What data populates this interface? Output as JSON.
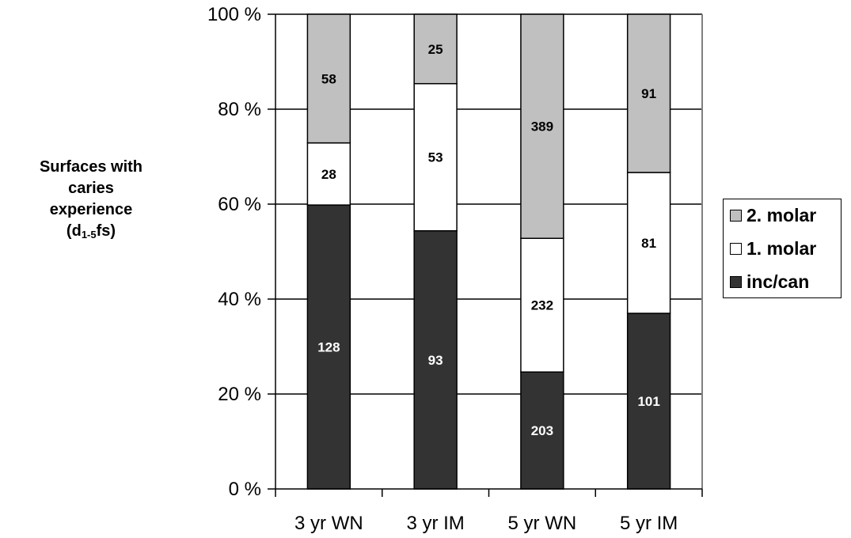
{
  "chart_data": {
    "type": "bar",
    "stacked": "percent",
    "ylabel_lines": [
      "Surfaces with",
      "caries",
      "experience"
    ],
    "ylabel_formula": {
      "base": "(d",
      "sub": "1-5",
      "suffix": "fs)"
    },
    "yticks": [
      "0 %",
      "20 %",
      "40 %",
      "60 %",
      "80 %",
      "100 %"
    ],
    "ylim": [
      0,
      100
    ],
    "grid": true,
    "legend_position": "right",
    "categories": [
      "3 yr WN",
      "3 yr IM",
      "5 yr WN",
      "5 yr IM"
    ],
    "series": [
      {
        "name": "inc/can",
        "color": "#333333",
        "label_color": "#ffffff",
        "values": [
          128,
          93,
          203,
          101
        ]
      },
      {
        "name": "1. molar",
        "color": "#ffffff",
        "label_color": "#000000",
        "values": [
          28,
          53,
          232,
          81
        ]
      },
      {
        "name": "2. molar",
        "color": "#c0c0c0",
        "label_color": "#000000",
        "values": [
          58,
          25,
          389,
          91
        ]
      }
    ],
    "legend_order": [
      "2. molar",
      "1. molar",
      "inc/can"
    ]
  }
}
